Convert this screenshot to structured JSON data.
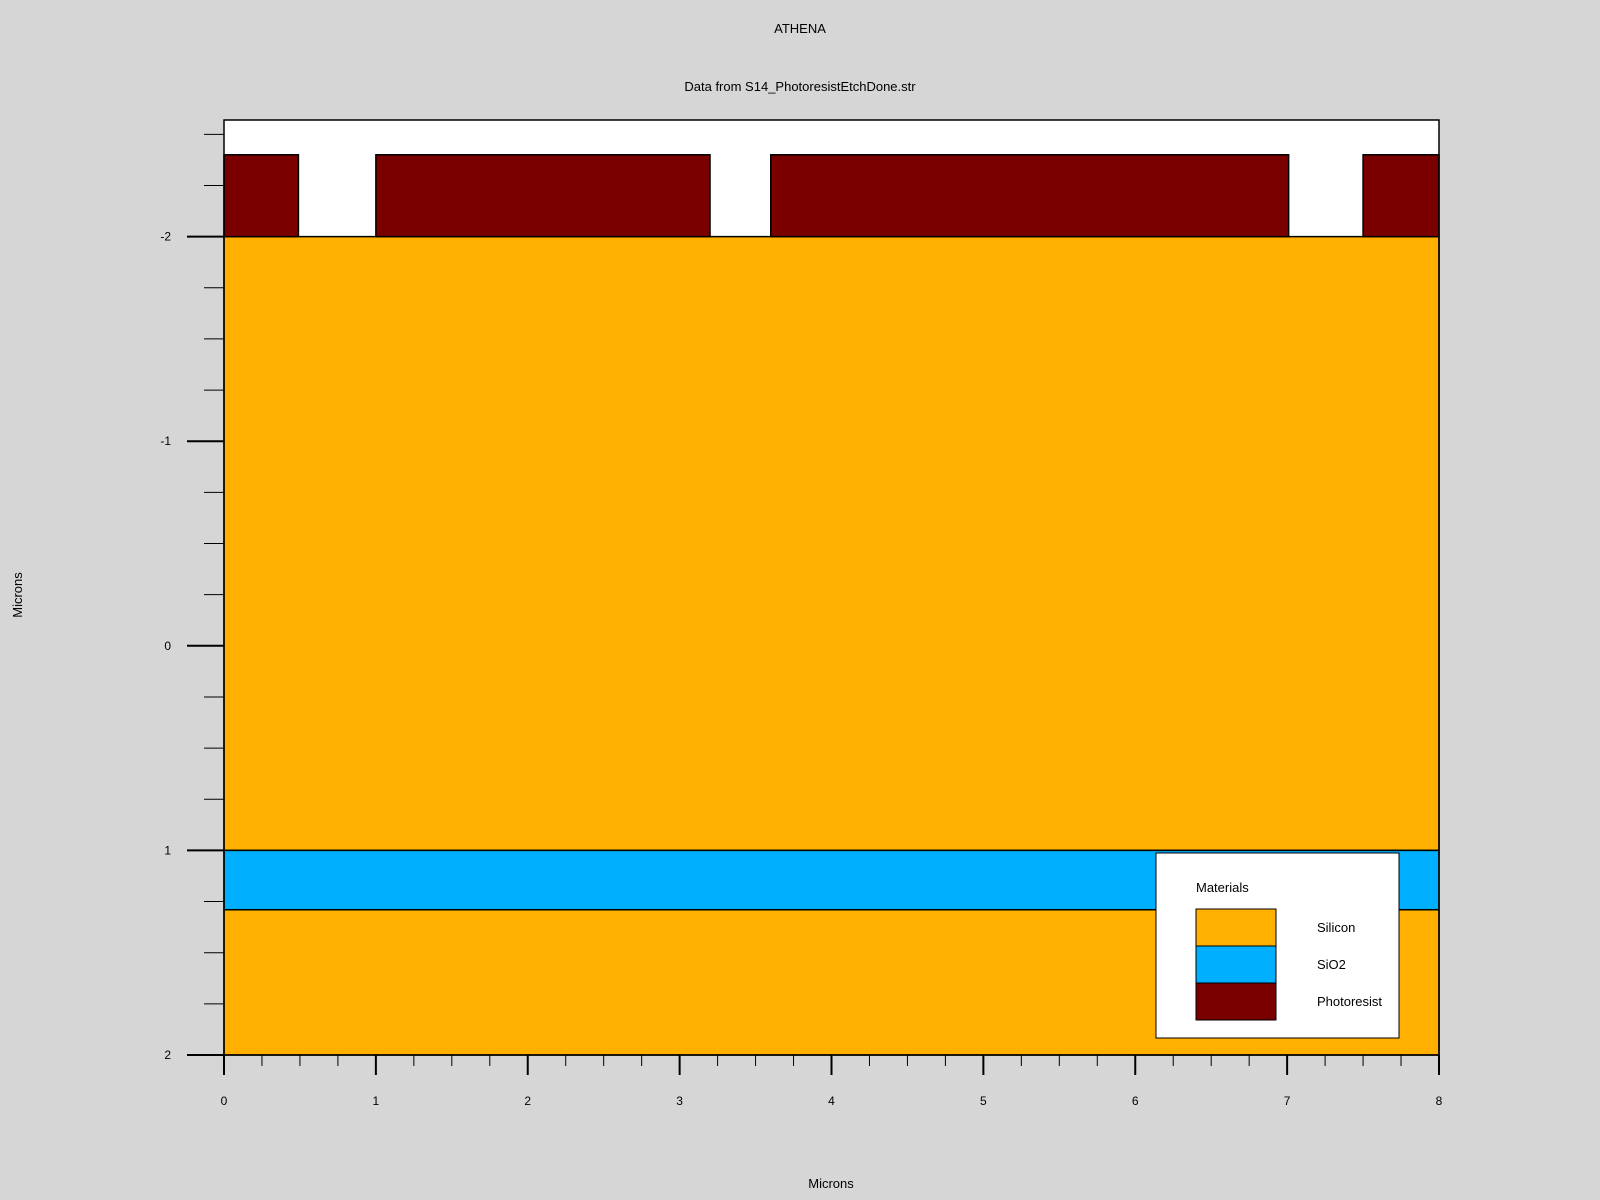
{
  "window": {
    "title": "ATHENA",
    "subtitle": "Data from S14_PhotoresistEtchDone.str"
  },
  "colors": {
    "background": "#d6d6d6",
    "plot_background": "#ffffff",
    "Silicon": "#ffb000",
    "SiO2": "#00b0ff",
    "Photoresist": "#7a0000"
  },
  "chart_data": {
    "type": "cross-section",
    "title": "ATHENA",
    "subtitle": "Data from S14_PhotoresistEtchDone.str",
    "xlabel": "Microns",
    "ylabel": "Microns",
    "xlim": [
      0,
      8
    ],
    "ylim": [
      -2.57,
      2
    ],
    "y_inverted": true,
    "grid": false,
    "x_ticks": [
      0,
      1,
      2,
      3,
      4,
      5,
      6,
      7,
      8
    ],
    "y_ticks": [
      -2,
      -1,
      0,
      1,
      2
    ],
    "x_minor_step": 0.25,
    "y_minor_step": 0.25,
    "regions": [
      {
        "material": "Silicon",
        "x0": 0,
        "x1": 8,
        "y0": -2,
        "y1": 1
      },
      {
        "material": "SiO2",
        "x0": 0,
        "x1": 8,
        "y0": 1,
        "y1": 1.29
      },
      {
        "material": "Silicon",
        "x0": 0,
        "x1": 8,
        "y0": 1.29,
        "y1": 2
      },
      {
        "material": "Photoresist",
        "x0": 0,
        "x1": 0.49,
        "y0": -2.4,
        "y1": -2
      },
      {
        "material": "Photoresist",
        "x0": 1,
        "x1": 3.2,
        "y0": -2.4,
        "y1": -2
      },
      {
        "material": "Photoresist",
        "x0": 3.6,
        "x1": 7.01,
        "y0": -2.4,
        "y1": -2
      },
      {
        "material": "Photoresist",
        "x0": 7.5,
        "x1": 8,
        "y0": -2.4,
        "y1": -2
      }
    ],
    "legend": {
      "title": "Materials",
      "placement": "bottom-right",
      "entries": [
        {
          "name": "Silicon",
          "color": "#ffb000"
        },
        {
          "name": "SiO2",
          "color": "#00b0ff"
        },
        {
          "name": "Photoresist",
          "color": "#7a0000"
        }
      ]
    }
  }
}
